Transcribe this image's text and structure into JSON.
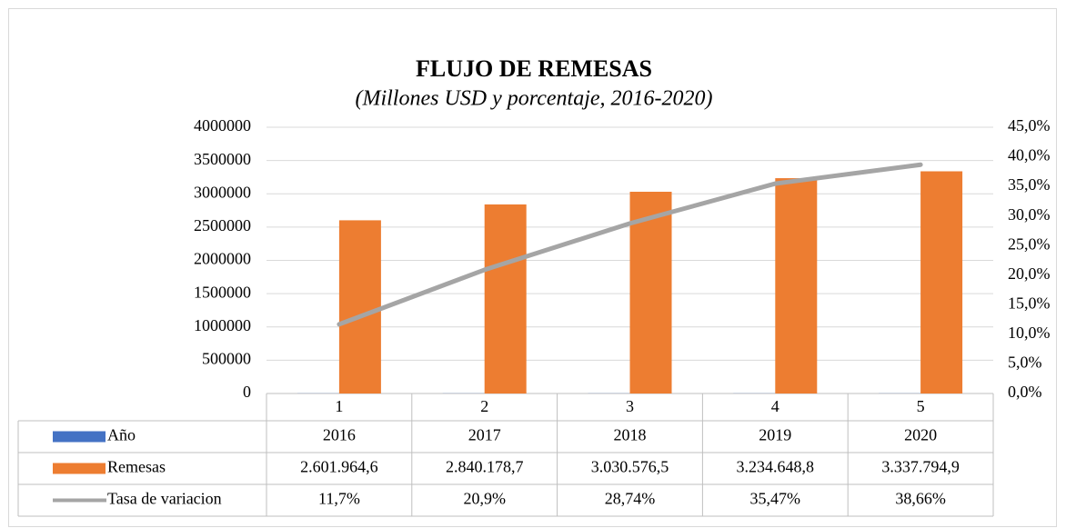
{
  "chart_data": {
    "type": "bar",
    "title": "FLUJO DE REMESAS",
    "subtitle": "(Millones USD y porcentaje, 2016-2020)",
    "categories": [
      "1",
      "2",
      "3",
      "4",
      "5"
    ],
    "series": [
      {
        "name": "Año",
        "color": "#4472c4",
        "values": [
          2016,
          2017,
          2018,
          2019,
          2020
        ]
      },
      {
        "name": "Remesas",
        "color": "#ed7d31",
        "values": [
          2601964.6,
          2840178.7,
          3030576.5,
          3234648.8,
          3337794.9
        ],
        "value_labels": [
          "2.601.964,6",
          "2.840.178,7",
          "3.030.576,5",
          "3.234.648,8",
          "3.337.794,9"
        ]
      },
      {
        "name": "Tasa de variacion",
        "color": "#a5a5a5",
        "type": "line",
        "axis": "y2",
        "values": [
          11.7,
          20.9,
          28.74,
          35.47,
          38.66
        ],
        "value_labels": [
          "11,7%",
          "20,9%",
          "28,74%",
          "35,47%",
          "38,66%"
        ]
      }
    ],
    "ylim": [
      0,
      4000000
    ],
    "yticks": [
      0,
      500000,
      1000000,
      1500000,
      2000000,
      2500000,
      3000000,
      3500000,
      4000000
    ],
    "y2lim": [
      0,
      45
    ],
    "y2ticks": [
      {
        "value": 0,
        "label": "0,0%"
      },
      {
        "value": 5,
        "label": "5,0%"
      },
      {
        "value": 10,
        "label": "10,0%"
      },
      {
        "value": 15,
        "label": "15,0%"
      },
      {
        "value": 20,
        "label": "20,0%"
      },
      {
        "value": 25,
        "label": "25,0%"
      },
      {
        "value": 30,
        "label": "30,0%"
      },
      {
        "value": 35,
        "label": "35,0%"
      },
      {
        "value": 40,
        "label": "40,0%"
      },
      {
        "value": 45,
        "label": "45,0%"
      }
    ],
    "grid": true
  }
}
